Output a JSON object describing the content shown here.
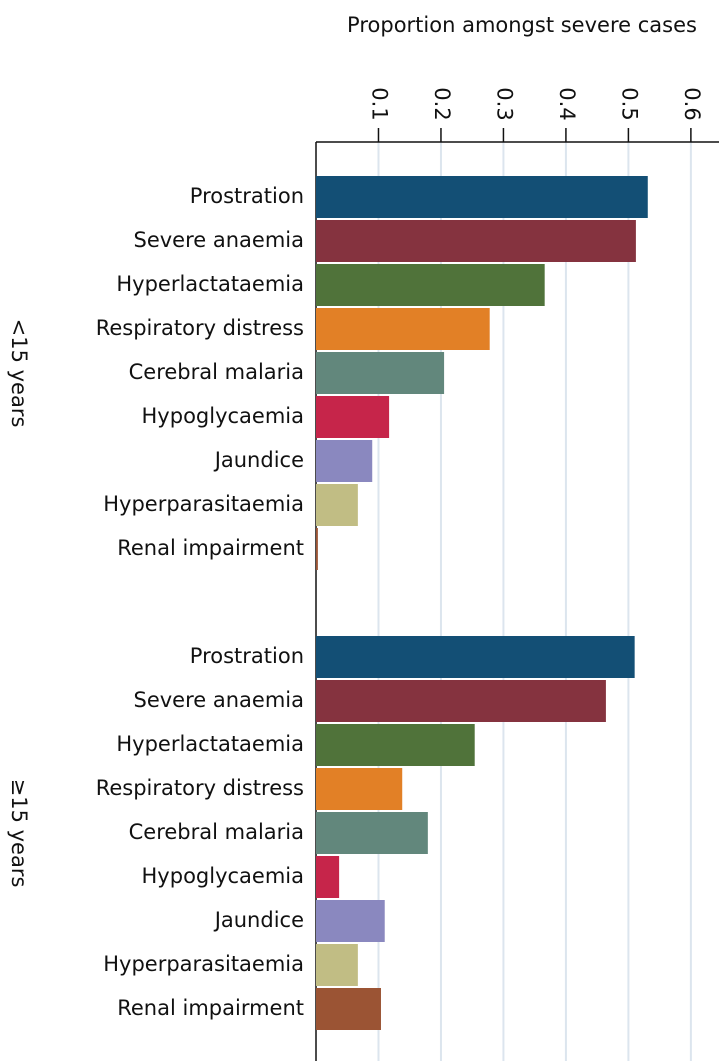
{
  "chart_data": {
    "type": "bar",
    "orientation": "horizontal",
    "xlabel": "Proportion amongst severe cases",
    "xlim": [
      0,
      0.645
    ],
    "xticks": [
      0.1,
      0.2,
      0.3,
      0.4,
      0.5,
      0.6
    ],
    "grid": true,
    "colors": [
      "#134f75",
      "#85333f",
      "#50733a",
      "#e28026",
      "#62877c",
      "#c6254a",
      "#8a88bf",
      "#c1bd84",
      "#9b5434"
    ],
    "panels": [
      {
        "label": "<15 years",
        "categories": [
          "Prostration",
          "Severe anaemia",
          "Hyperlactataemia",
          "Respiratory distress",
          "Cerebral malaria",
          "Hypoglycaemia",
          "Jaundice",
          "Hyperparasitaemia",
          "Renal impairment"
        ],
        "values": [
          0.531,
          0.512,
          0.366,
          0.278,
          0.205,
          0.117,
          0.09,
          0.067,
          0.003
        ]
      },
      {
        "label": "≥15 years",
        "categories": [
          "Prostration",
          "Severe anaemia",
          "Hyperlactataemia",
          "Respiratory distress",
          "Cerebral malaria",
          "Hypoglycaemia",
          "Jaundice",
          "Hyperparasitaemia",
          "Renal impairment"
        ],
        "values": [
          0.51,
          0.464,
          0.254,
          0.138,
          0.179,
          0.037,
          0.11,
          0.067,
          0.104
        ]
      }
    ]
  }
}
